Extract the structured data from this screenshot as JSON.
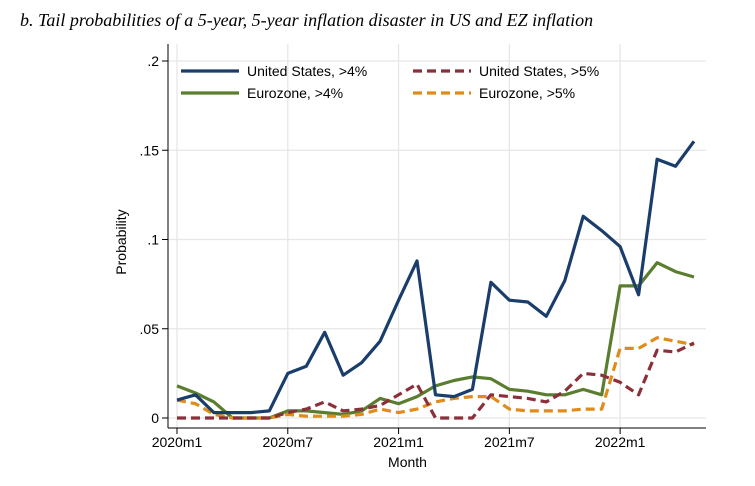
{
  "title": "b. Tail probabilities of a 5-year, 5-year inflation disaster in US and EZ inflation",
  "chart_data": {
    "type": "line",
    "title": "",
    "xlabel": "Month",
    "ylabel": "Probability",
    "x": [
      "2020m1",
      "2020m2",
      "2020m3",
      "2020m4",
      "2020m5",
      "2020m6",
      "2020m7",
      "2020m8",
      "2020m9",
      "2020m10",
      "2020m11",
      "2020m12",
      "2021m1",
      "2021m2",
      "2021m3",
      "2021m4",
      "2021m5",
      "2021m6",
      "2021m7",
      "2021m8",
      "2021m9",
      "2021m10",
      "2021m11",
      "2021m12",
      "2022m1",
      "2022m2",
      "2022m3",
      "2022m4",
      "2022m5"
    ],
    "x_ticks": [
      "2020m1",
      "2020m7",
      "2021m1",
      "2021m7",
      "2022m1"
    ],
    "y_ticks": [
      0,
      0.05,
      0.1,
      0.15,
      0.2
    ],
    "y_tick_labels": [
      "0",
      ".05",
      ".1",
      ".15",
      ".2"
    ],
    "ylim": [
      0,
      0.2
    ],
    "grid": true,
    "legend_position": "top",
    "series": [
      {
        "name": "United States, >4%",
        "color": "#1a3d6b",
        "dash": "solid",
        "values": [
          0.01,
          0.013,
          0.003,
          0.003,
          0.003,
          0.004,
          0.025,
          0.029,
          0.048,
          0.024,
          0.031,
          0.043,
          0.066,
          0.088,
          0.013,
          0.012,
          0.016,
          0.076,
          0.066,
          0.065,
          0.057,
          0.077,
          0.113,
          0.105,
          0.096,
          0.069,
          0.145,
          0.141,
          0.155
        ]
      },
      {
        "name": "Eurozone, >4%",
        "color": "#5a7d2f",
        "dash": "solid",
        "values": [
          0.018,
          0.014,
          0.009,
          0.0,
          0.0,
          0.0,
          0.004,
          0.004,
          0.003,
          0.002,
          0.004,
          0.011,
          0.008,
          0.012,
          0.018,
          0.021,
          0.023,
          0.022,
          0.016,
          0.015,
          0.013,
          0.013,
          0.016,
          0.013,
          0.074,
          0.074,
          0.087,
          0.082,
          0.079
        ]
      },
      {
        "name": "United States, >5%",
        "color": "#8b2f3a",
        "dash": "dashed",
        "values": [
          0.0,
          0.0,
          0.0,
          0.0,
          0.0,
          0.0,
          0.003,
          0.005,
          0.009,
          0.004,
          0.005,
          0.007,
          0.013,
          0.019,
          0.0,
          0.0,
          0.0,
          0.013,
          0.012,
          0.011,
          0.009,
          0.015,
          0.025,
          0.024,
          0.02,
          0.013,
          0.038,
          0.037,
          0.042
        ]
      },
      {
        "name": "Eurozone, >5%",
        "color": "#e08c1a",
        "dash": "dashed",
        "values": [
          0.01,
          0.008,
          0.002,
          0.0,
          0.0,
          0.0,
          0.002,
          0.001,
          0.001,
          0.001,
          0.002,
          0.005,
          0.003,
          0.005,
          0.009,
          0.011,
          0.012,
          0.012,
          0.005,
          0.004,
          0.004,
          0.004,
          0.005,
          0.005,
          0.039,
          0.039,
          0.045,
          0.043,
          0.041
        ]
      }
    ]
  }
}
